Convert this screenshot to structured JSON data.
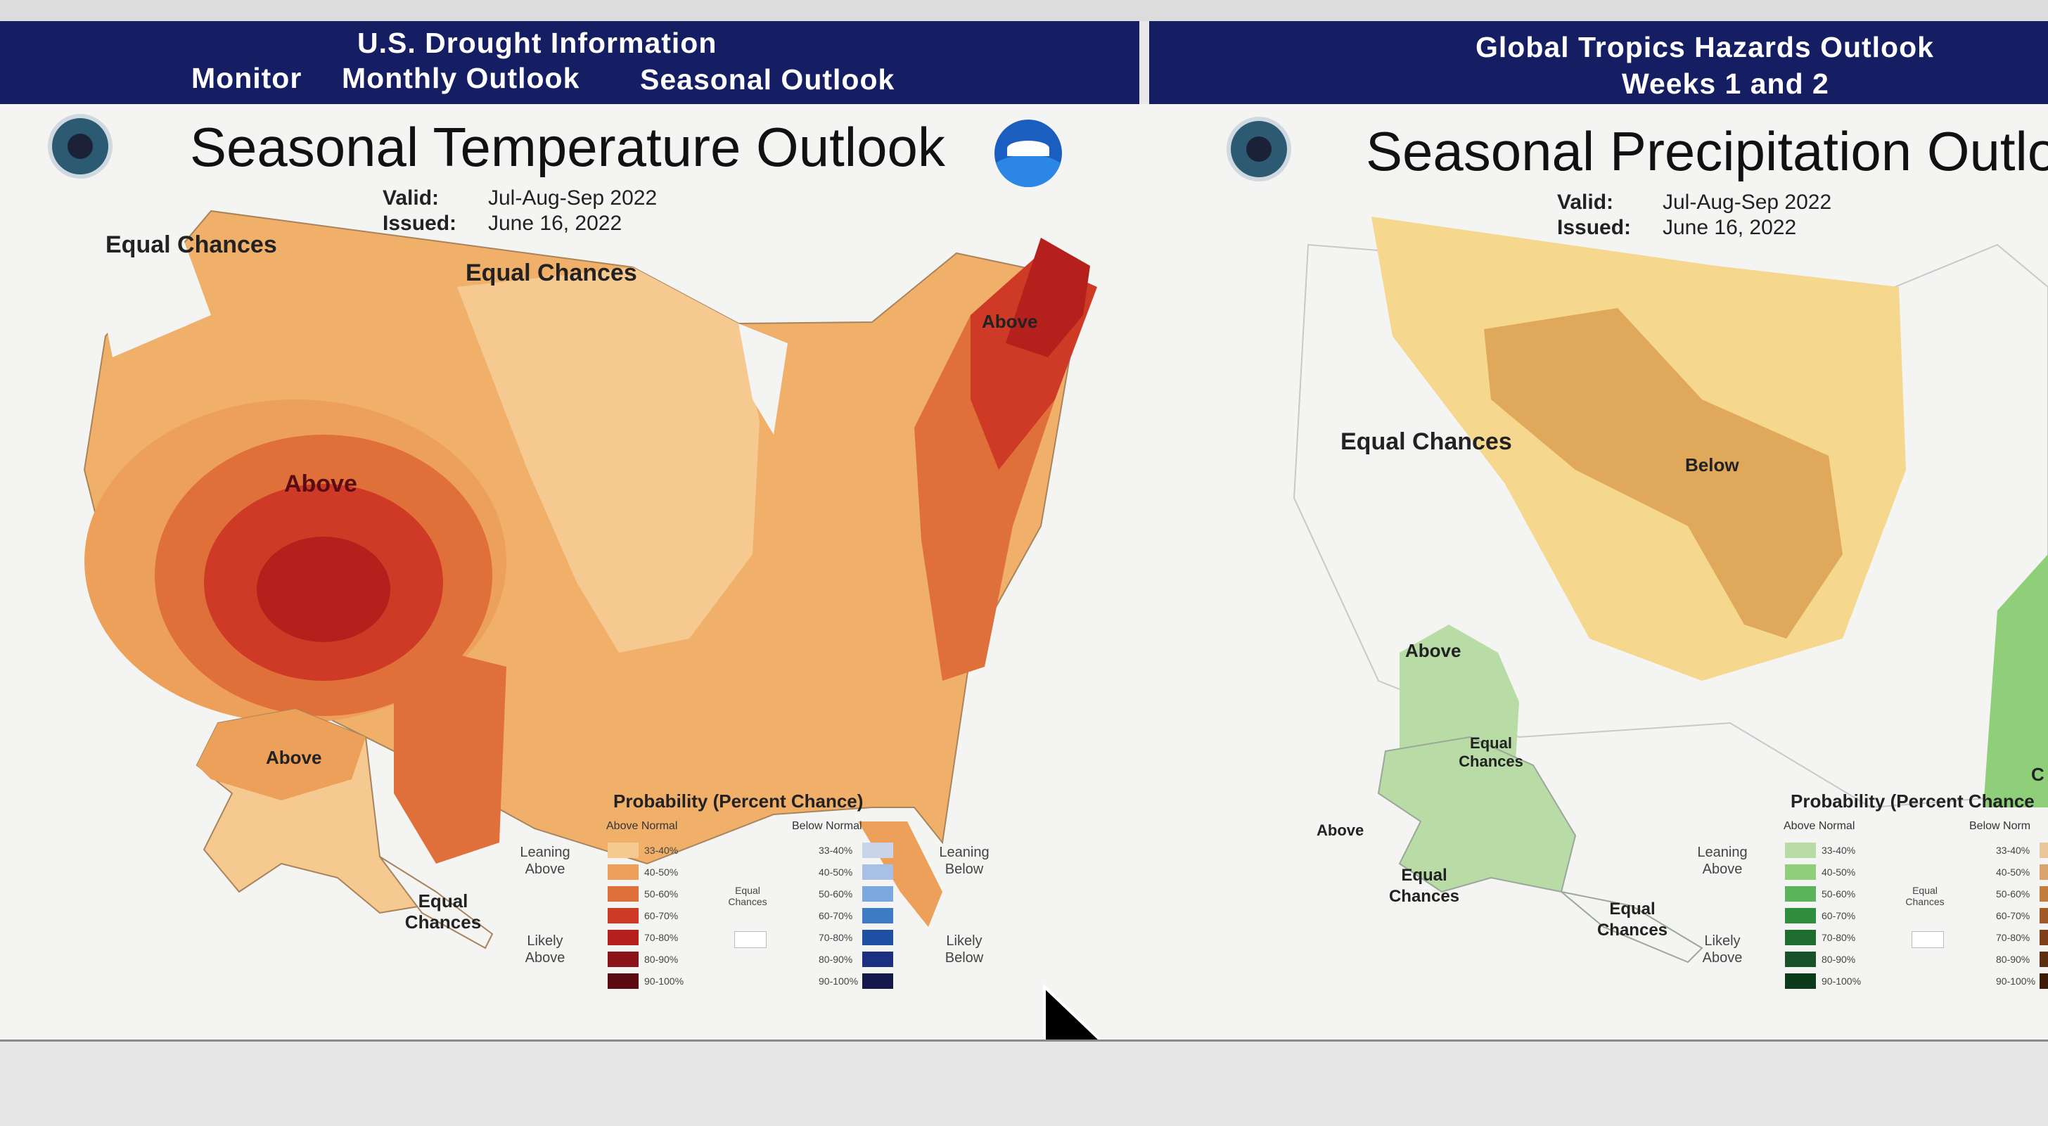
{
  "header": {
    "left_title": "U.S. Drought Information",
    "left_links": [
      "Monitor",
      "Monthly Outlook",
      "Seasonal Outlook"
    ],
    "right_title": "Global Tropics Hazards Outlook",
    "right_subtitle": "Weeks 1 and 2"
  },
  "temperature": {
    "title": "Seasonal Temperature Outlook",
    "valid_label": "Valid:",
    "valid_value": "Jul-Aug-Sep 2022",
    "issued_label": "Issued:",
    "issued_value": "June 16, 2022",
    "map_labels": {
      "equal_chances_nw": "Equal Chances",
      "equal_chances_north": "Equal Chances",
      "above_west": "Above",
      "above_northeast": "Above",
      "above_alaska": "Above",
      "equal_chances_alaska": "Equal Chances"
    },
    "legend": {
      "title": "Probability (Percent Chance)",
      "above_header": "Above Normal",
      "below_header": "Below Normal",
      "leaning_above": "Leaning Above",
      "likely_above": "Likely Above",
      "leaning_below": "Leaning Below",
      "likely_below": "Likely Below",
      "equal_chances": "Equal Chances",
      "ranges": [
        "33-40%",
        "40-50%",
        "50-60%",
        "60-70%",
        "70-80%",
        "80-90%",
        "90-100%"
      ],
      "above_colors": [
        "#f5c98f",
        "#eda05a",
        "#e0703a",
        "#cf3a26",
        "#b5201c",
        "#8c1219",
        "#5a0c12"
      ],
      "below_colors": [
        "#c9d4ea",
        "#a9c0e6",
        "#7aa8de",
        "#3f7cc8",
        "#1f4fa3",
        "#1c2f80",
        "#14184a"
      ]
    }
  },
  "precipitation": {
    "title": "Seasonal Precipitation Outlo",
    "valid_label": "Valid:",
    "valid_value": "Jul-Aug-Sep 2022",
    "issued_label": "Issued:",
    "issued_value": "June 16, 2022",
    "map_labels": {
      "equal_chances_west": "Equal Chances",
      "below_center": "Below",
      "above_southwest": "Above",
      "equal_chances_alaska_top": "Equal Chances",
      "above_alaska": "Above",
      "equal_chances_alaska_bottom": "Equal Chances",
      "equal_chances_se_alaska": "Equal Chances",
      "cut_right": "C"
    },
    "legend": {
      "title": "Probability (Percent Chance",
      "above_header": "Above Normal",
      "below_header": "Below Norm",
      "leaning_above": "Leaning Above",
      "likely_above": "Likely Above",
      "equal_chances": "Equal Chances",
      "ranges": [
        "33-40%",
        "40-50%",
        "50-60%",
        "60-70%",
        "70-80%",
        "80-90%",
        "90-100%"
      ],
      "above_colors": [
        "#b9dca6",
        "#8fcf7a",
        "#5ab55a",
        "#2e8e3e",
        "#1f6e30",
        "#175228",
        "#0e3a1c"
      ],
      "below_colors": [
        "#e9c79a",
        "#d9a36a",
        "#c27c3e",
        "#a25a26",
        "#7e4018",
        "#5e2e10",
        "#3e1c08"
      ]
    }
  }
}
